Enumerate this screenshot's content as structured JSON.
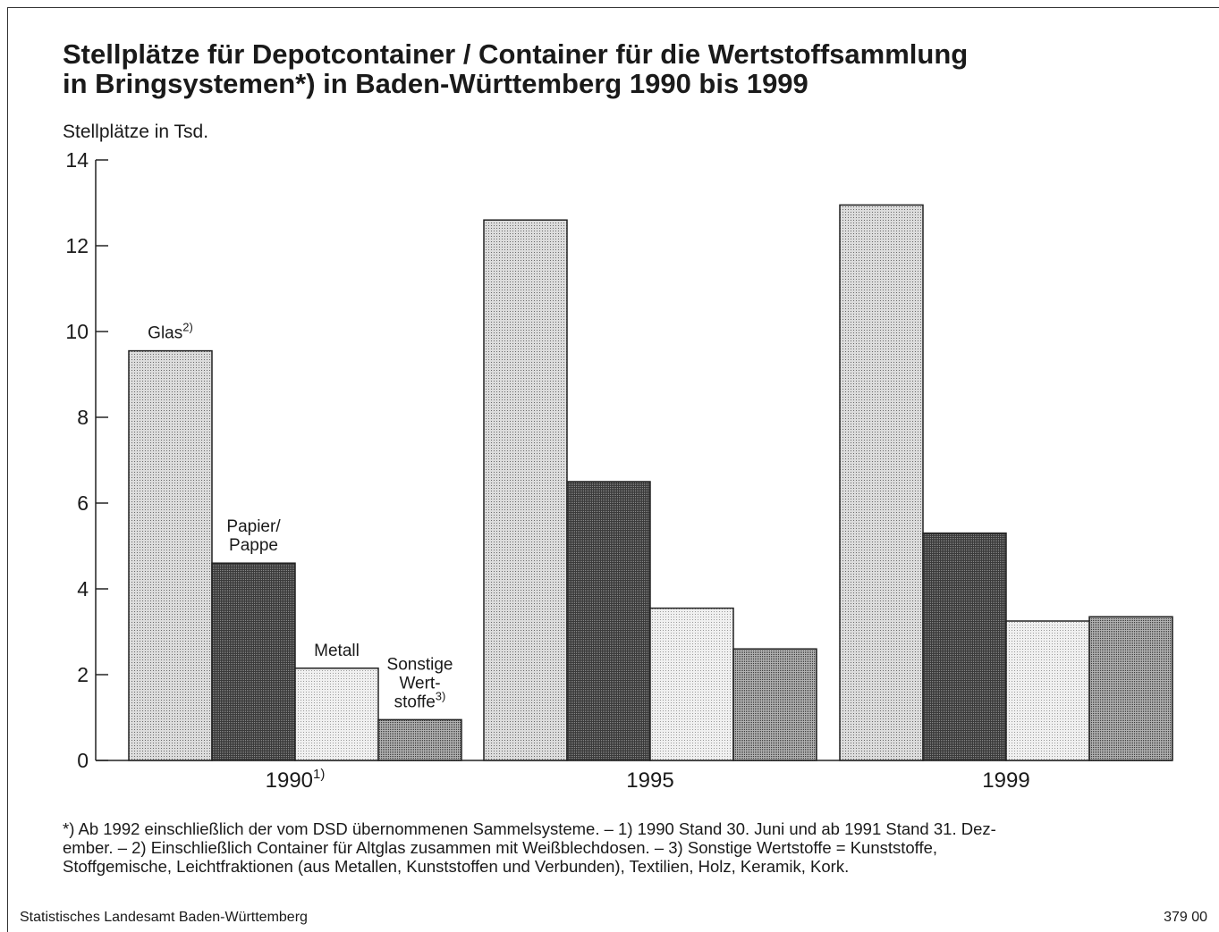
{
  "title_lines": [
    "Stellplätze für Depotcontainer / Container für die Wertstoffsammlung",
    "in Bringsystemen*) in Baden-Württemberg 1990 bis 1999"
  ],
  "chart_data": {
    "type": "bar",
    "title": "Stellplätze für Depotcontainer / Container für die Wertstoffsammlung in Bringsystemen*) in Baden-Württemberg 1990 bis 1999",
    "ylabel": "Stellplätze in Tsd.",
    "xlabel": "",
    "ylim": [
      0,
      14
    ],
    "yticks": [
      "0",
      "2",
      "4",
      "6",
      "8",
      "10",
      "12",
      "14"
    ],
    "grid": false,
    "categories": [
      "1990",
      "1995",
      "1999"
    ],
    "category_labels": [
      {
        "text": "1990",
        "sup": "1)"
      },
      {
        "text": "1995",
        "sup": ""
      },
      {
        "text": "1999",
        "sup": ""
      }
    ],
    "series": [
      {
        "name": "Glas",
        "sup": "2)",
        "values": [
          9.55,
          12.6,
          12.95
        ]
      },
      {
        "name": "Papier/ Pappe",
        "sup": "",
        "values": [
          4.6,
          6.5,
          5.3
        ]
      },
      {
        "name": "Metall",
        "sup": "",
        "values": [
          2.15,
          3.55,
          3.25
        ]
      },
      {
        "name": "Sonstige Wert- stoffe",
        "sup": "3)",
        "values": [
          0.95,
          2.6,
          3.35
        ]
      }
    ],
    "series_label_lines": [
      [
        "Glas"
      ],
      [
        "Papier/",
        "Pappe"
      ],
      [
        "Metall"
      ],
      [
        "Sonstige",
        "Wert-",
        "stoffe"
      ]
    ],
    "colors": [
      "#c8c8c8",
      "#5a5a5a",
      "#e6e6e6",
      "#8c8c8c"
    ]
  },
  "footnote_lines": [
    "*) Ab 1992 einschließlich der vom DSD übernommenen Sammelsysteme. – 1) 1990 Stand 30. Juni und ab 1991 Stand 31. Dez-",
    "ember. – 2) Einschließlich Container für Altglas zusammen mit Weißblechdosen. – 3) Sonstige Wertstoffe = Kunststoffe,",
    "Stoffgemische, Leichtfraktionen (aus Metallen, Kunststoffen und Verbunden), Textilien, Holz, Keramik, Kork."
  ],
  "source": "Statistisches Landesamt Baden-Württemberg",
  "code": "379 00"
}
